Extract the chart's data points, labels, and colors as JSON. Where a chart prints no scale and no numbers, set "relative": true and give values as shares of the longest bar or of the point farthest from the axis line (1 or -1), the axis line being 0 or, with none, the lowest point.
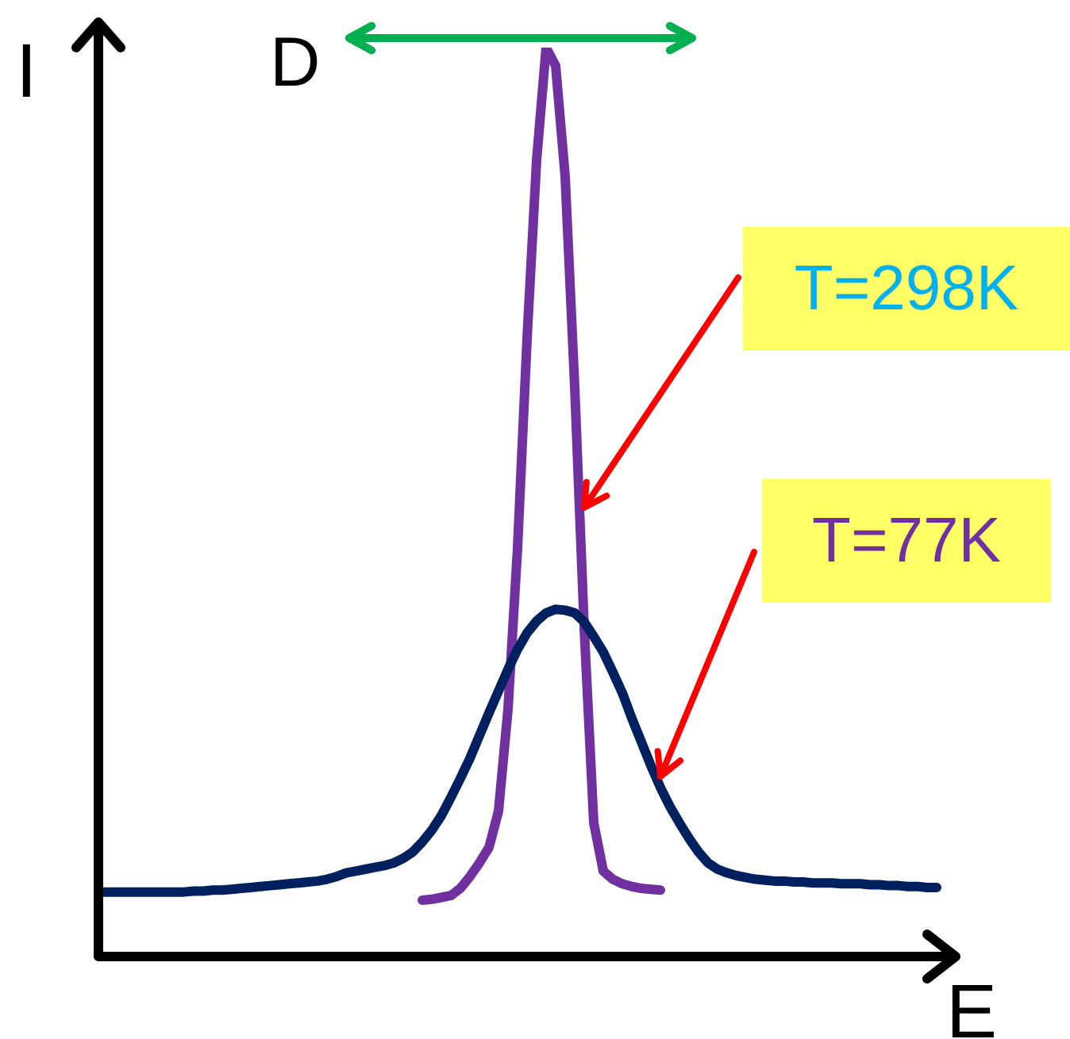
{
  "chart_data": {
    "type": "line",
    "relative": true,
    "xlabel": "E",
    "ylabel": "I",
    "annotations": [
      "D"
    ],
    "legend": false,
    "grid": false,
    "marker": "none",
    "line_style": "solid",
    "tick_labels": false,
    "categories": [
      null,
      null,
      null,
      null,
      null,
      null,
      null,
      null,
      null,
      null,
      null,
      null,
      null,
      null,
      null,
      null,
      null,
      null,
      null,
      null,
      null,
      null,
      null,
      null,
      null,
      null,
      null,
      null,
      null,
      null,
      null,
      null,
      null,
      null,
      null,
      null,
      null,
      null,
      null,
      null,
      null,
      null,
      null,
      null,
      null,
      null,
      null,
      null,
      null,
      null,
      null,
      null,
      null,
      null,
      null,
      null,
      null,
      null,
      null,
      null,
      null,
      null,
      null,
      null,
      null,
      null,
      null,
      null,
      null,
      null,
      null,
      null,
      null,
      null,
      null,
      null,
      null,
      null,
      null,
      null,
      null,
      null,
      null,
      null,
      null,
      null,
      null,
      null,
      null
    ],
    "series": [
      {
        "name": "T=77K",
        "color": "#002060",
        "values": [
          0.071,
          0.071,
          0.071,
          0.071,
          0.071,
          0.071,
          0.071,
          0.071,
          0.071,
          0.071,
          0.072,
          0.072,
          0.073,
          0.073,
          0.074,
          0.075,
          0.076,
          0.077,
          0.078,
          0.079,
          0.08,
          0.081,
          0.082,
          0.083,
          0.085,
          0.088,
          0.092,
          0.094,
          0.096,
          0.098,
          0.1,
          0.103,
          0.108,
          0.115,
          0.126,
          0.139,
          0.155,
          0.175,
          0.196,
          0.218,
          0.243,
          0.268,
          0.292,
          0.316,
          0.338,
          0.356,
          0.369,
          0.378,
          0.382,
          0.381,
          0.378,
          0.368,
          0.352,
          0.335,
          0.313,
          0.29,
          0.262,
          0.236,
          0.21,
          0.186,
          0.165,
          0.147,
          0.13,
          0.115,
          0.103,
          0.096,
          0.092,
          0.089,
          0.087,
          0.085,
          0.084,
          0.083,
          0.083,
          0.082,
          0.082,
          0.081,
          0.081,
          0.081,
          0.08,
          0.08,
          0.08,
          0.079,
          0.079,
          0.078,
          0.078,
          0.077,
          0.077,
          0.076,
          0.076
        ]
      },
      {
        "name": "T=298K",
        "color": "#7030a0",
        "values": [
          null,
          null,
          null,
          null,
          null,
          null,
          null,
          null,
          null,
          null,
          null,
          null,
          null,
          null,
          null,
          null,
          null,
          null,
          null,
          null,
          null,
          null,
          null,
          null,
          null,
          null,
          null,
          null,
          null,
          null,
          null,
          null,
          null,
          null,
          0.062,
          0.063,
          0.065,
          0.067,
          0.075,
          0.088,
          0.103,
          0.12,
          0.16,
          0.272,
          0.449,
          0.68,
          0.876,
          1,
          0.98,
          0.858,
          0.627,
          0.361,
          0.147,
          0.094,
          0.085,
          0.08,
          0.077,
          0.075,
          0.074,
          0.073,
          null,
          null,
          null,
          null,
          null,
          null,
          null,
          null,
          null,
          null,
          null,
          null,
          null,
          null,
          null,
          null,
          null,
          null,
          null,
          null,
          null,
          null,
          null,
          null,
          null,
          null,
          null,
          null,
          null
        ]
      }
    ]
  }
}
